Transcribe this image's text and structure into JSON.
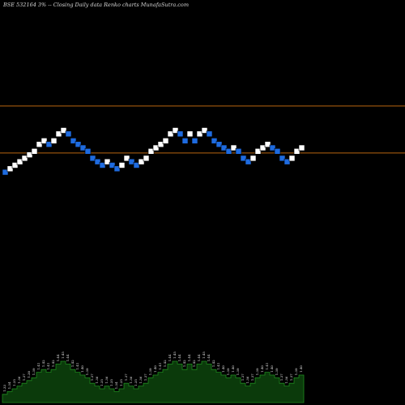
{
  "chart_data": {
    "type": "renko",
    "title": "BSE 532164  3% -- Closing Daily data  Renko  charts MunafaSutra.com",
    "colors": {
      "background": "#000000",
      "up_brick": "#ffffff",
      "down_brick": "#1e6be0",
      "reference_line": "#b8650f",
      "volume_fill": "#0b3a0b",
      "volume_outline": "#1f8a1f"
    },
    "reference_lines": [
      {
        "name": "upper",
        "value": 1.52
      },
      {
        "name": "lower",
        "value": 1.385
      }
    ],
    "bricks": [
      {
        "price": 1.33,
        "dir": "down"
      },
      {
        "price": 1.34,
        "dir": "up"
      },
      {
        "price": 1.35,
        "dir": "up"
      },
      {
        "price": 1.36,
        "dir": "up"
      },
      {
        "price": 1.37,
        "dir": "up"
      },
      {
        "price": 1.38,
        "dir": "up"
      },
      {
        "price": 1.39,
        "dir": "up"
      },
      {
        "price": 1.41,
        "dir": "up"
      },
      {
        "price": 1.42,
        "dir": "up"
      },
      {
        "price": 1.41,
        "dir": "down"
      },
      {
        "price": 1.42,
        "dir": "up"
      },
      {
        "price": 1.44,
        "dir": "up"
      },
      {
        "price": 1.45,
        "dir": "up"
      },
      {
        "price": 1.44,
        "dir": "down"
      },
      {
        "price": 1.42,
        "dir": "down"
      },
      {
        "price": 1.41,
        "dir": "down"
      },
      {
        "price": 1.4,
        "dir": "down"
      },
      {
        "price": 1.39,
        "dir": "down"
      },
      {
        "price": 1.37,
        "dir": "down"
      },
      {
        "price": 1.36,
        "dir": "down"
      },
      {
        "price": 1.35,
        "dir": "down"
      },
      {
        "price": 1.36,
        "dir": "up"
      },
      {
        "price": 1.35,
        "dir": "down"
      },
      {
        "price": 1.34,
        "dir": "down"
      },
      {
        "price": 1.35,
        "dir": "up"
      },
      {
        "price": 1.37,
        "dir": "up"
      },
      {
        "price": 1.36,
        "dir": "down"
      },
      {
        "price": 1.35,
        "dir": "down"
      },
      {
        "price": 1.36,
        "dir": "up"
      },
      {
        "price": 1.37,
        "dir": "up"
      },
      {
        "price": 1.39,
        "dir": "up"
      },
      {
        "price": 1.4,
        "dir": "up"
      },
      {
        "price": 1.41,
        "dir": "up"
      },
      {
        "price": 1.42,
        "dir": "up"
      },
      {
        "price": 1.44,
        "dir": "up"
      },
      {
        "price": 1.45,
        "dir": "up"
      },
      {
        "price": 1.44,
        "dir": "down"
      },
      {
        "price": 1.42,
        "dir": "down"
      },
      {
        "price": 1.44,
        "dir": "up"
      },
      {
        "price": 1.42,
        "dir": "down"
      },
      {
        "price": 1.44,
        "dir": "up"
      },
      {
        "price": 1.45,
        "dir": "up"
      },
      {
        "price": 1.44,
        "dir": "down"
      },
      {
        "price": 1.42,
        "dir": "down"
      },
      {
        "price": 1.41,
        "dir": "down"
      },
      {
        "price": 1.4,
        "dir": "down"
      },
      {
        "price": 1.39,
        "dir": "down"
      },
      {
        "price": 1.4,
        "dir": "up"
      },
      {
        "price": 1.39,
        "dir": "down"
      },
      {
        "price": 1.37,
        "dir": "down"
      },
      {
        "price": 1.36,
        "dir": "down"
      },
      {
        "price": 1.37,
        "dir": "up"
      },
      {
        "price": 1.39,
        "dir": "up"
      },
      {
        "price": 1.4,
        "dir": "up"
      },
      {
        "price": 1.41,
        "dir": "up"
      },
      {
        "price": 1.4,
        "dir": "down"
      },
      {
        "price": 1.39,
        "dir": "down"
      },
      {
        "price": 1.37,
        "dir": "down"
      },
      {
        "price": 1.36,
        "dir": "down"
      },
      {
        "price": 1.37,
        "dir": "up"
      },
      {
        "price": 1.39,
        "dir": "up"
      },
      {
        "price": 1.4,
        "dir": "up"
      }
    ],
    "volume_labels": [
      "1.33",
      "1.34",
      "1.35",
      "1.36",
      "1.37",
      "1.38",
      "1.39",
      "1.41",
      "1.42",
      "1.41",
      "1.42",
      "1.44",
      "1.45",
      "1.44",
      "1.42",
      "1.41",
      "1.40",
      "1.39",
      "1.37",
      "1.36",
      "1.35",
      "1.36",
      "1.35",
      "1.34",
      "1.35",
      "1.37",
      "1.36",
      "1.35",
      "1.36",
      "1.37",
      "1.39",
      "1.40",
      "1.41",
      "1.42",
      "1.44",
      "1.45",
      "1.44",
      "1.42",
      "1.44",
      "1.42",
      "1.44",
      "1.45",
      "1.44",
      "1.42",
      "1.41",
      "1.40",
      "1.39",
      "1.40",
      "1.39",
      "1.37",
      "1.36",
      "1.37",
      "1.39",
      "1.40",
      "1.41",
      "1.40",
      "1.39",
      "1.37",
      "1.36",
      "1.37",
      "1.39",
      "1.40"
    ]
  }
}
